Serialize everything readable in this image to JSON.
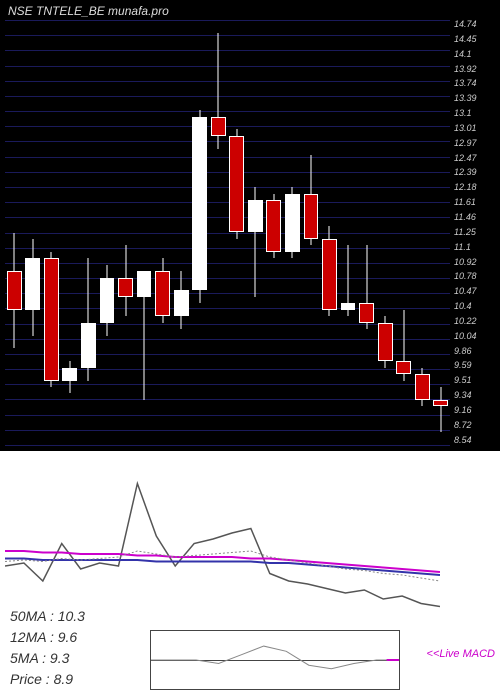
{
  "header": {
    "ticker": "NSE TNTELE_BE",
    "source": "munafa.pro"
  },
  "candlestick_chart": {
    "type": "candlestick",
    "background_color": "#000000",
    "gridline_color": "#1a1a5a",
    "text_color": "#cccccc",
    "candle_up_color": "#ffffff",
    "candle_down_color": "#cc0000",
    "wick_color": "#ffffff",
    "ymin": 8.3,
    "ymax": 14.9,
    "y_labels": [
      "14.74",
      "14.45",
      "14.1",
      "13.92",
      "13.74",
      "13.39",
      "13.1",
      "13.01",
      "12.97",
      "12.47",
      "12.39",
      "12.18",
      "11.61",
      "11.46",
      "11.25",
      "11.1",
      "10.92",
      "10.78",
      "10.47",
      "10.4",
      "10.22",
      "10.04",
      "9.86",
      "9.59",
      "9.51",
      "9.34",
      "9.16",
      "8.72",
      "8.54"
    ],
    "gridline_count": 29,
    "candles": [
      {
        "open": 11.0,
        "high": 11.6,
        "low": 9.8,
        "close": 10.4
      },
      {
        "open": 10.4,
        "high": 11.5,
        "low": 10.0,
        "close": 11.2
      },
      {
        "open": 11.2,
        "high": 11.3,
        "low": 9.2,
        "close": 9.3
      },
      {
        "open": 9.3,
        "high": 9.6,
        "low": 9.1,
        "close": 9.5
      },
      {
        "open": 9.5,
        "high": 11.2,
        "low": 9.3,
        "close": 10.2
      },
      {
        "open": 10.2,
        "high": 11.1,
        "low": 10.0,
        "close": 10.9
      },
      {
        "open": 10.9,
        "high": 11.4,
        "low": 10.3,
        "close": 10.6
      },
      {
        "open": 10.6,
        "high": 11.0,
        "low": 9.0,
        "close": 11.0
      },
      {
        "open": 11.0,
        "high": 11.2,
        "low": 10.2,
        "close": 10.3
      },
      {
        "open": 10.3,
        "high": 11.0,
        "low": 10.1,
        "close": 10.7
      },
      {
        "open": 10.7,
        "high": 13.5,
        "low": 10.5,
        "close": 13.4
      },
      {
        "open": 13.4,
        "high": 14.7,
        "low": 12.9,
        "close": 13.1
      },
      {
        "open": 13.1,
        "high": 13.2,
        "low": 11.5,
        "close": 11.6
      },
      {
        "open": 11.6,
        "high": 12.3,
        "low": 10.6,
        "close": 12.1
      },
      {
        "open": 12.1,
        "high": 12.2,
        "low": 11.2,
        "close": 11.3
      },
      {
        "open": 11.3,
        "high": 12.3,
        "low": 11.2,
        "close": 12.2
      },
      {
        "open": 12.2,
        "high": 12.8,
        "low": 11.4,
        "close": 11.5
      },
      {
        "open": 11.5,
        "high": 11.7,
        "low": 10.3,
        "close": 10.4
      },
      {
        "open": 10.4,
        "high": 11.4,
        "low": 10.3,
        "close": 10.5
      },
      {
        "open": 10.5,
        "high": 11.4,
        "low": 10.1,
        "close": 10.2
      },
      {
        "open": 10.2,
        "high": 10.3,
        "low": 9.5,
        "close": 9.6
      },
      {
        "open": 9.6,
        "high": 10.4,
        "low": 9.3,
        "close": 9.4
      },
      {
        "open": 9.4,
        "high": 9.5,
        "low": 8.9,
        "close": 9.0
      },
      {
        "open": 9.0,
        "high": 9.2,
        "low": 8.5,
        "close": 8.9
      }
    ]
  },
  "indicator_panel": {
    "type": "line_indicator",
    "background_color": "#ffffff",
    "ymin": 0,
    "ymax": 100,
    "lines": [
      {
        "name": "signal_white",
        "color": "#555555",
        "width": 1.5,
        "points": [
          30,
          32,
          20,
          45,
          28,
          32,
          30,
          85,
          50,
          30,
          45,
          48,
          52,
          55,
          25,
          20,
          18,
          15,
          12,
          14,
          8,
          10,
          5,
          3
        ]
      },
      {
        "name": "ma_magenta",
        "color": "#cc00cc",
        "width": 2,
        "points": [
          40,
          40,
          39,
          39,
          38,
          38,
          38,
          37,
          37,
          36,
          36,
          36,
          36,
          35,
          35,
          34,
          33,
          32,
          31,
          30,
          29,
          28,
          27,
          26
        ]
      },
      {
        "name": "ma_blue",
        "color": "#3333aa",
        "width": 2,
        "points": [
          35,
          35,
          34,
          34,
          34,
          34,
          34,
          34,
          33,
          33,
          33,
          33,
          33,
          33,
          32,
          32,
          31,
          30,
          29,
          28,
          27,
          26,
          25,
          24
        ]
      },
      {
        "name": "dotted",
        "color": "#888888",
        "width": 1,
        "dash": "2,2",
        "points": [
          33,
          34,
          33,
          35,
          34,
          35,
          36,
          40,
          38,
          36,
          37,
          38,
          39,
          40,
          36,
          34,
          32,
          30,
          28,
          27,
          25,
          24,
          22,
          20
        ]
      }
    ],
    "ma_labels": {
      "ma50": "50MA : 10.3",
      "ma12": "12MA : 9.6",
      "ma5": "5MA : 9.3",
      "price": "Price   : 8.9"
    },
    "macd": {
      "label": "<<Live MACD",
      "zero_color": "#444444",
      "signal_color": "#888888",
      "histogram_color": "#cc00cc",
      "points": [
        0,
        0,
        0,
        -2,
        3,
        8,
        5,
        -3,
        -5,
        -2,
        0,
        0
      ]
    }
  }
}
